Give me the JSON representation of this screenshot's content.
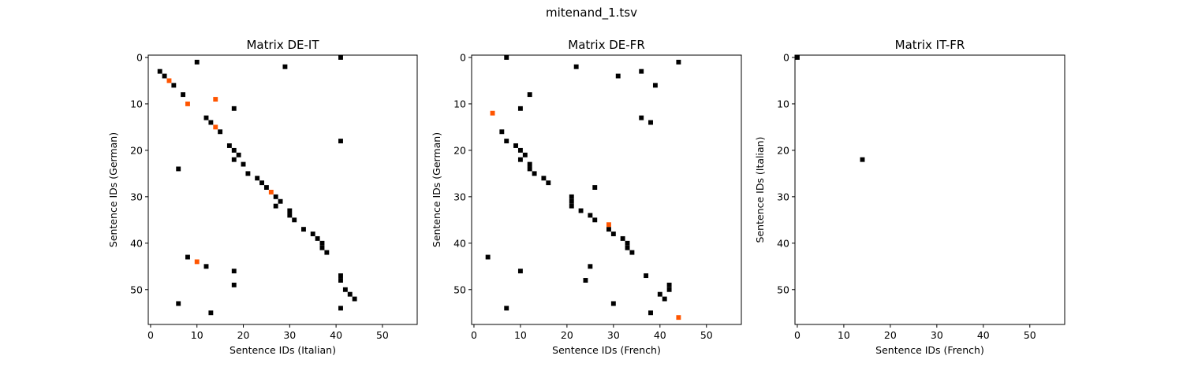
{
  "suptitle": "mitenand_1.tsv",
  "colors": {
    "black": "#000000",
    "orange": "#ff5500",
    "axes": "#000000"
  },
  "chart_data": [
    {
      "type": "heatmap",
      "title": "Matrix DE-IT",
      "xlabel": "Sentence IDs (Italian)",
      "ylabel": "Sentence IDs (German)",
      "xlim": [
        -0.5,
        57.5
      ],
      "ylim": [
        57.5,
        -0.5
      ],
      "xticks": [
        0,
        10,
        20,
        30,
        40,
        50
      ],
      "yticks": [
        0,
        10,
        20,
        30,
        40,
        50
      ],
      "cells_black": [
        [
          41,
          0
        ],
        [
          10,
          1
        ],
        [
          29,
          2
        ],
        [
          2,
          3
        ],
        [
          3,
          4
        ],
        [
          5,
          6
        ],
        [
          7,
          8
        ],
        [
          18,
          11
        ],
        [
          12,
          13
        ],
        [
          13,
          14
        ],
        [
          15,
          16
        ],
        [
          41,
          18
        ],
        [
          17,
          19
        ],
        [
          18,
          20
        ],
        [
          19,
          21
        ],
        [
          18,
          22
        ],
        [
          20,
          23
        ],
        [
          6,
          24
        ],
        [
          21,
          25
        ],
        [
          23,
          26
        ],
        [
          24,
          27
        ],
        [
          25,
          28
        ],
        [
          27,
          30
        ],
        [
          28,
          31
        ],
        [
          27,
          32
        ],
        [
          30,
          33
        ],
        [
          30,
          34
        ],
        [
          31,
          35
        ],
        [
          33,
          37
        ],
        [
          35,
          38
        ],
        [
          36,
          39
        ],
        [
          37,
          40
        ],
        [
          37,
          41
        ],
        [
          38,
          42
        ],
        [
          8,
          43
        ],
        [
          12,
          45
        ],
        [
          18,
          46
        ],
        [
          41,
          47
        ],
        [
          41,
          48
        ],
        [
          18,
          49
        ],
        [
          42,
          50
        ],
        [
          43,
          51
        ],
        [
          44,
          52
        ],
        [
          6,
          53
        ],
        [
          41,
          54
        ],
        [
          13,
          55
        ]
      ],
      "cells_orange": [
        [
          4,
          5
        ],
        [
          14,
          9
        ],
        [
          8,
          10
        ],
        [
          14,
          15
        ],
        [
          26,
          29
        ],
        [
          10,
          44
        ]
      ]
    },
    {
      "type": "heatmap",
      "title": "Matrix DE-FR",
      "xlabel": "Sentence IDs (French)",
      "ylabel": "Sentence IDs (German)",
      "xlim": [
        -0.5,
        57.5
      ],
      "ylim": [
        57.5,
        -0.5
      ],
      "xticks": [
        0,
        10,
        20,
        30,
        40,
        50
      ],
      "yticks": [
        0,
        10,
        20,
        30,
        40,
        50
      ],
      "cells_black": [
        [
          7,
          0
        ],
        [
          44,
          1
        ],
        [
          22,
          2
        ],
        [
          36,
          3
        ],
        [
          31,
          4
        ],
        [
          39,
          6
        ],
        [
          12,
          8
        ],
        [
          10,
          11
        ],
        [
          36,
          13
        ],
        [
          38,
          14
        ],
        [
          6,
          16
        ],
        [
          7,
          18
        ],
        [
          9,
          19
        ],
        [
          10,
          20
        ],
        [
          11,
          21
        ],
        [
          10,
          22
        ],
        [
          12,
          23
        ],
        [
          12,
          24
        ],
        [
          13,
          25
        ],
        [
          15,
          26
        ],
        [
          16,
          27
        ],
        [
          26,
          28
        ],
        [
          21,
          30
        ],
        [
          21,
          31
        ],
        [
          21,
          32
        ],
        [
          23,
          33
        ],
        [
          25,
          34
        ],
        [
          26,
          35
        ],
        [
          29,
          37
        ],
        [
          30,
          38
        ],
        [
          32,
          39
        ],
        [
          33,
          40
        ],
        [
          33,
          41
        ],
        [
          34,
          42
        ],
        [
          3,
          43
        ],
        [
          25,
          45
        ],
        [
          10,
          46
        ],
        [
          37,
          47
        ],
        [
          24,
          48
        ],
        [
          42,
          49
        ],
        [
          42,
          50
        ],
        [
          40,
          51
        ],
        [
          41,
          52
        ],
        [
          30,
          53
        ],
        [
          7,
          54
        ],
        [
          38,
          55
        ]
      ],
      "cells_orange": [
        [
          4,
          12
        ],
        [
          29,
          36
        ],
        [
          44,
          56
        ]
      ]
    },
    {
      "type": "heatmap",
      "title": "Matrix IT-FR",
      "xlabel": "Sentence IDs (French)",
      "ylabel": "Sentence IDs (Italian)",
      "xlim": [
        -0.5,
        57.5
      ],
      "ylim": [
        57.5,
        -0.5
      ],
      "xticks": [
        0,
        10,
        20,
        30,
        40,
        50
      ],
      "yticks": [
        0,
        10,
        20,
        30,
        40,
        50
      ],
      "cells_black": [
        [
          0,
          0
        ],
        [
          14,
          22
        ]
      ],
      "cells_orange": []
    }
  ]
}
